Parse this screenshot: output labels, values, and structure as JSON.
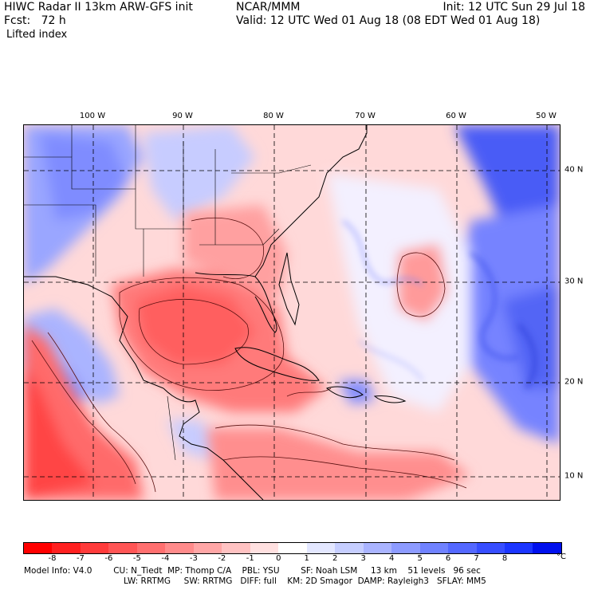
{
  "header": {
    "left": "HIWC Radar II 13km ARW-GFS init\nFcst:   72 h",
    "center": "NCAR/MMM",
    "init": "Init: 12 UTC Sun 29 Jul 18",
    "valid": "Valid: 12 UTC Wed 01 Aug 18 (08 EDT Wed 01 Aug 18)",
    "field": "Lifted index"
  },
  "map": {
    "longitude_labels": [
      "100 W",
      "90 W",
      "80 W",
      "70 W",
      "60 W",
      "50 W"
    ],
    "latitude_labels": [
      "40 N",
      "30 N",
      "20 N",
      "10 N"
    ],
    "field_name": "Lifted index"
  },
  "colorbar": {
    "ticks": [
      "-8",
      "-7",
      "-6",
      "-5",
      "-4",
      "-3",
      "-2",
      "-1",
      "0",
      "1",
      "2",
      "3",
      "4",
      "5",
      "6",
      "7",
      "8"
    ],
    "unit": "°C",
    "colors": [
      "#ff0000",
      "#ff2020",
      "#ff3b3b",
      "#ff5555",
      "#ff6f6f",
      "#ff8b8b",
      "#ffa6a6",
      "#ffc2c2",
      "#ffe0e0",
      "#ffffff",
      "#e3e7ff",
      "#c6ceff",
      "#aab4ff",
      "#8d9bff",
      "#7082ff",
      "#5468ff",
      "#374eff",
      "#1b35ff",
      "#0010ee"
    ]
  },
  "footer": {
    "line1": "Model Info: V4.0        CU: N_Tiedt  MP: Thomp C/A    PBL: YSU        SF: Noah LSM     13 km    51 levels   96 sec",
    "line2": "LW: RRTMG     SW: RRTMG   DIFF: full    KM: 2D Smagor  DAMP: Rayleigh3   SFLAY: MM5"
  }
}
